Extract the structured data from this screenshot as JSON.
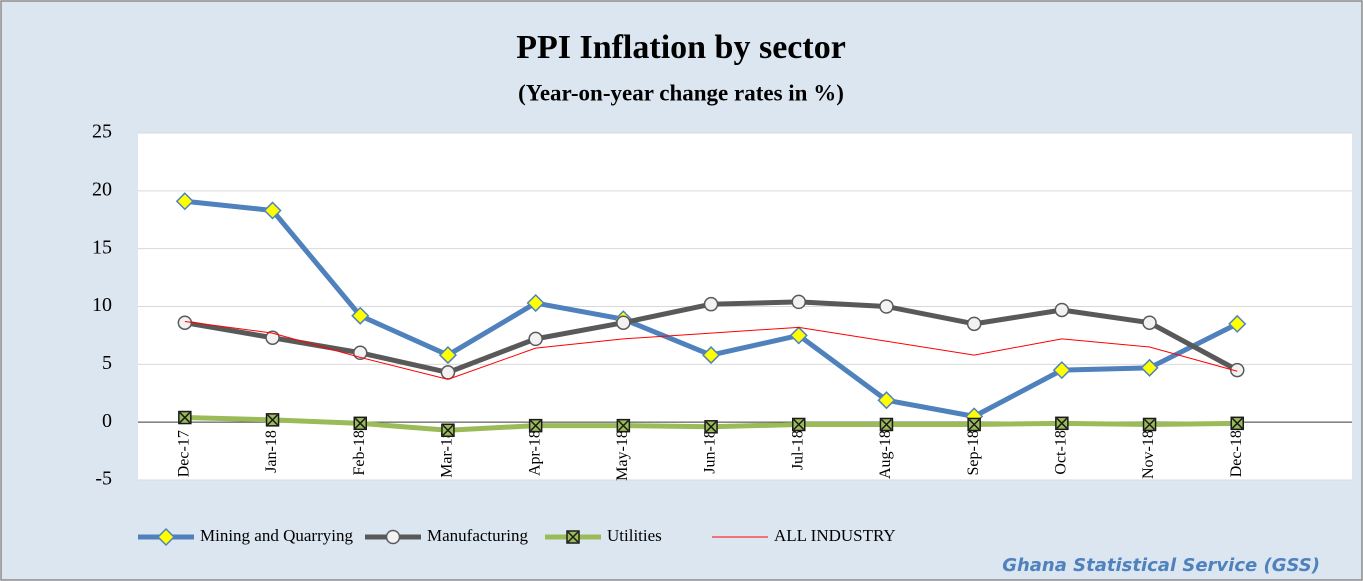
{
  "chart_data": {
    "type": "line",
    "title": "PPI Inflation by sector",
    "subtitle": "(Year-on-year change rates in %)",
    "source": "Ghana Statistical Service (GSS)",
    "categories": [
      "Dec-17",
      "Jan-18",
      "Feb-18",
      "Mar-18",
      "Apr-18",
      "May-18",
      "Jun-18",
      "Jul-18",
      "Aug-18",
      "Sep-18",
      "Oct-18",
      "Nov-18",
      "Dec-18"
    ],
    "series": [
      {
        "name": "Mining and Quarrying",
        "color": "#4f81bd",
        "marker": "diamond",
        "width": 5,
        "values": [
          19.1,
          18.3,
          9.2,
          5.8,
          10.3,
          8.9,
          5.8,
          7.5,
          1.9,
          0.5,
          4.5,
          4.7,
          8.5
        ]
      },
      {
        "name": "Manufacturing",
        "color": "#595959",
        "marker": "circle",
        "width": 5,
        "values": [
          8.6,
          7.3,
          6.0,
          4.3,
          7.2,
          8.6,
          10.2,
          10.4,
          10.0,
          8.5,
          9.7,
          8.6,
          4.5
        ]
      },
      {
        "name": "Utilities",
        "color": "#9bbb59",
        "marker": "square",
        "width": 5,
        "values": [
          0.4,
          0.2,
          -0.1,
          -0.7,
          -0.3,
          -0.3,
          -0.4,
          -0.2,
          -0.2,
          -0.2,
          -0.1,
          -0.2,
          -0.1
        ]
      },
      {
        "name": "ALL INDUSTRY",
        "color": "#ff0000",
        "marker": "none",
        "width": 1,
        "values": [
          8.7,
          7.7,
          5.6,
          3.7,
          6.4,
          7.2,
          7.7,
          8.2,
          7.0,
          5.8,
          7.2,
          6.5,
          4.4
        ]
      }
    ],
    "ylim": [
      -5,
      25
    ],
    "yticks": [
      -5,
      0,
      5,
      10,
      15,
      20,
      25
    ],
    "grid": true
  }
}
